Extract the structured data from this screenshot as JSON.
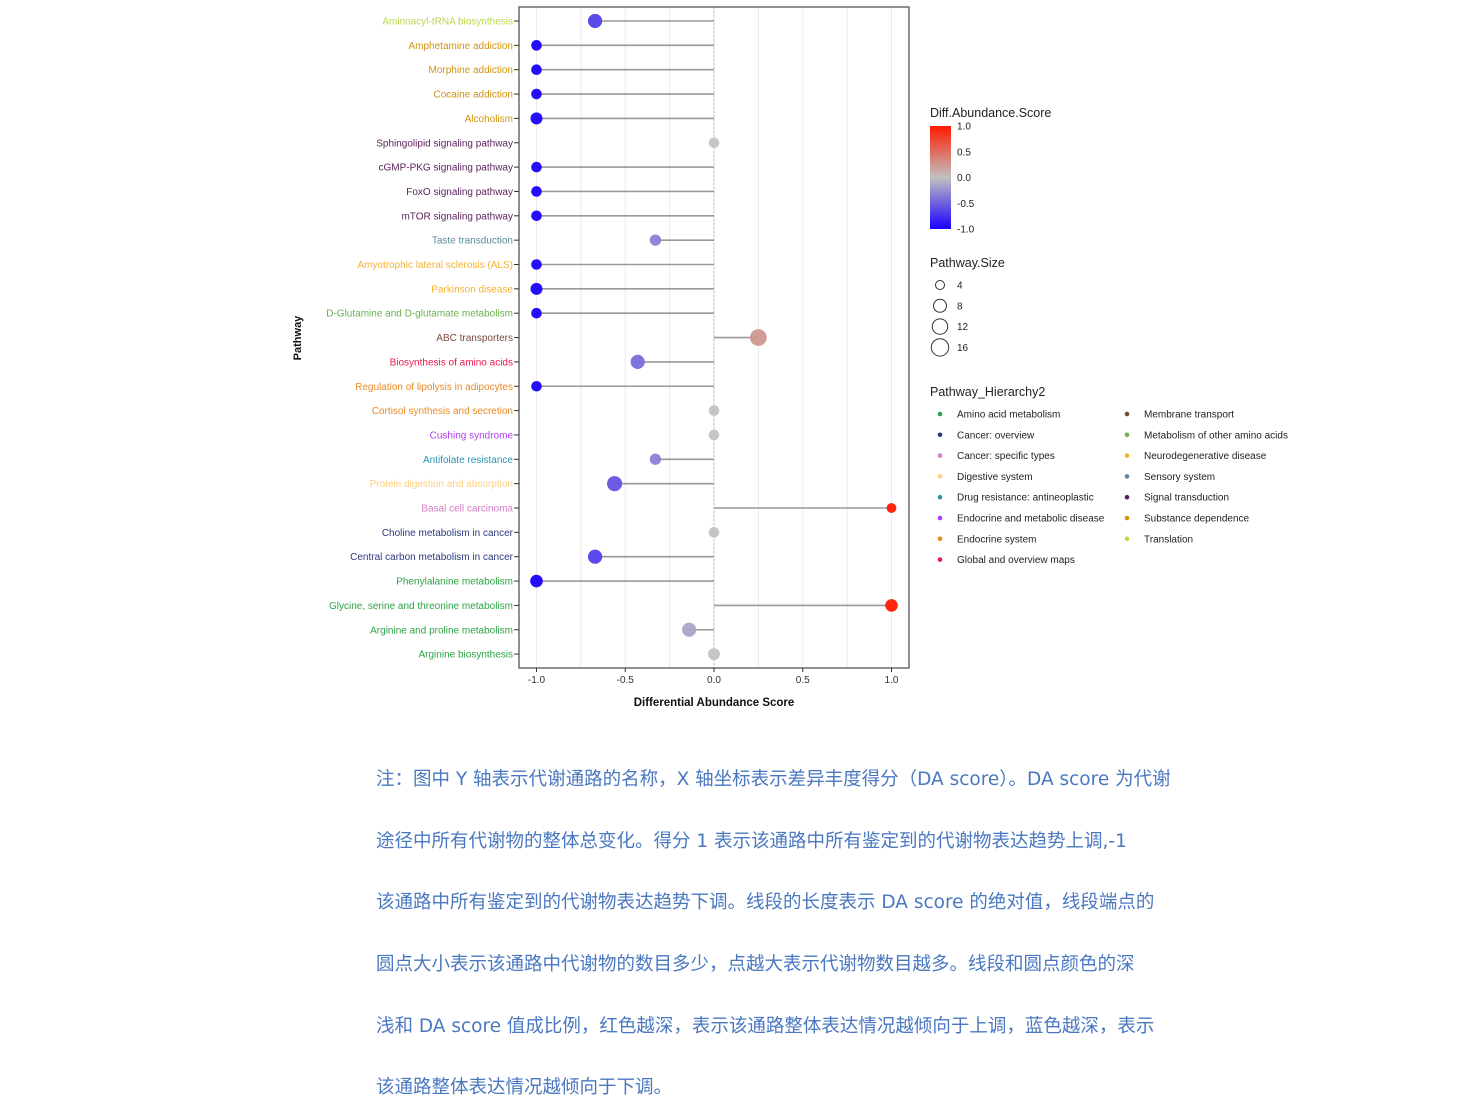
{
  "chart_data": {
    "type": "lollipop",
    "xlabel": "Differential Abundance Score",
    "ylabel": "Pathway",
    "xlim": [
      -1.1,
      1.1
    ],
    "xticks": [
      "-1.0",
      "-0.5",
      "0.0",
      "0.5",
      "1.0"
    ],
    "xtick_values": [
      -1,
      -0.5,
      0,
      0.5,
      1
    ],
    "grid": true,
    "rows": [
      {
        "name": "Aminoacyl-tRNA biosynthesis",
        "score": -0.67,
        "size": 10,
        "hierarchy": "Translation"
      },
      {
        "name": "Amphetamine addiction",
        "score": -1,
        "size": 4,
        "hierarchy": "Substance dependence"
      },
      {
        "name": "Morphine addiction",
        "score": -1,
        "size": 4,
        "hierarchy": "Substance dependence"
      },
      {
        "name": "Cocaine addiction",
        "score": -1,
        "size": 4,
        "hierarchy": "Substance dependence"
      },
      {
        "name": "Alcoholism",
        "score": -1,
        "size": 6,
        "hierarchy": "Substance dependence"
      },
      {
        "name": "Sphingolipid signaling pathway",
        "score": 0,
        "size": 4,
        "hierarchy": "Signal transduction"
      },
      {
        "name": "cGMP-PKG signaling pathway",
        "score": -1,
        "size": 4,
        "hierarchy": "Signal transduction"
      },
      {
        "name": "FoxO signaling pathway",
        "score": -1,
        "size": 4,
        "hierarchy": "Signal transduction"
      },
      {
        "name": "mTOR signaling pathway",
        "score": -1,
        "size": 4,
        "hierarchy": "Signal transduction"
      },
      {
        "name": "Taste transduction",
        "score": -0.33,
        "size": 5,
        "hierarchy": "Sensory system"
      },
      {
        "name": "Amyotrophic lateral sclerosis (ALS)",
        "score": -1,
        "size": 4,
        "hierarchy": "Neurodegenerative disease"
      },
      {
        "name": "Parkinson disease",
        "score": -1,
        "size": 6,
        "hierarchy": "Neurodegenerative disease"
      },
      {
        "name": "D-Glutamine and D-glutamate metabolism",
        "score": -1,
        "size": 4,
        "hierarchy": "Metabolism of other amino acids"
      },
      {
        "name": "ABC transporters",
        "score": 0.25,
        "size": 16,
        "hierarchy": "Membrane transport"
      },
      {
        "name": "Biosynthesis of amino acids",
        "score": -0.43,
        "size": 10,
        "hierarchy": "Global and overview maps"
      },
      {
        "name": "Regulation of lipolysis in adipocytes",
        "score": -1,
        "size": 4,
        "hierarchy": "Endocrine system"
      },
      {
        "name": "Cortisol synthesis and secretion",
        "score": 0,
        "size": 4,
        "hierarchy": "Endocrine system"
      },
      {
        "name": "Cushing syndrome",
        "score": 0,
        "size": 4,
        "hierarchy": "Endocrine and metabolic disease"
      },
      {
        "name": "Antifolate resistance",
        "score": -0.33,
        "size": 5,
        "hierarchy": "Drug resistance: antineoplastic"
      },
      {
        "name": "Protein digestion and absorption",
        "score": -0.56,
        "size": 12,
        "hierarchy": "Digestive system"
      },
      {
        "name": "Basal cell carcinoma",
        "score": 1,
        "size": 3,
        "hierarchy": "Cancer: specific types"
      },
      {
        "name": "Choline metabolism in cancer",
        "score": 0,
        "size": 4,
        "hierarchy": "Cancer: overview"
      },
      {
        "name": "Central carbon metabolism in cancer",
        "score": -0.67,
        "size": 10,
        "hierarchy": "Cancer: overview"
      },
      {
        "name": "Phenylalanine metabolism",
        "score": -1,
        "size": 7,
        "hierarchy": "Amino acid metabolism"
      },
      {
        "name": "Glycine, serine and threonine metabolism",
        "score": 1,
        "size": 7,
        "hierarchy": "Amino acid metabolism"
      },
      {
        "name": "Arginine and proline metabolism",
        "score": -0.14,
        "size": 10,
        "hierarchy": "Amino acid metabolism"
      },
      {
        "name": "Arginine biosynthesis",
        "score": 0,
        "size": 6,
        "hierarchy": "Amino acid metabolism"
      }
    ],
    "legend_color": {
      "title": "Diff.Abundance.Score",
      "labels": [
        "1.0",
        "0.5",
        "0.0",
        "-0.5",
        "-1.0"
      ],
      "low": "#1a00ff",
      "mid": "#c0c0c0",
      "high": "#ff1a00"
    },
    "legend_size": {
      "title": "Pathway.Size",
      "values": [
        4,
        8,
        12,
        16
      ],
      "labels": [
        "4",
        "8",
        "12",
        "16"
      ]
    },
    "legend_hierarchy": {
      "title": "Pathway_Hierarchy2",
      "items": [
        {
          "label": "Amino acid metabolism",
          "color": "#2ca444"
        },
        {
          "label": "Cancer: overview",
          "color": "#2b3a7e"
        },
        {
          "label": "Cancer: specific types",
          "color": "#d67fc6"
        },
        {
          "label": "Digestive system",
          "color": "#ffcf80"
        },
        {
          "label": "Drug resistance: antineoplastic",
          "color": "#2f93b3"
        },
        {
          "label": "Endocrine and metabolic disease",
          "color": "#b23cf2"
        },
        {
          "label": "Endocrine system",
          "color": "#e98b25"
        },
        {
          "label": "Global and overview maps",
          "color": "#e8194c"
        },
        {
          "label": "Membrane transport",
          "color": "#7b4a3c"
        },
        {
          "label": "Metabolism of other amino acids",
          "color": "#6cb04e"
        },
        {
          "label": "Neurodegenerative disease",
          "color": "#f6b131"
        },
        {
          "label": "Sensory system",
          "color": "#5b8b9b"
        },
        {
          "label": "Signal transduction",
          "color": "#5a1f5c"
        },
        {
          "label": "Substance dependence",
          "color": "#d4920d"
        },
        {
          "label": "Translation",
          "color": "#b9d84b"
        }
      ]
    }
  },
  "note": [
    "注：图中 Y 轴表示代谢通路的名称，X 轴坐标表示差异丰度得分（DA  score）。DA  score 为代谢",
    "途径中所有代谢物的整体总变化。得分  1  表示该通路中所有鉴定到的代谢物表达趋势上调,-1",
    "该通路中所有鉴定到的代谢物表达趋势下调。线段的长度表示 DA score 的绝对值，线段端点的",
    "圆点大小表示该通路中代谢物的数目多少，点越大表示代谢物数目越多。线段和圆点颜色的深",
    "浅和 DA score 值成比例，红色越深，表示该通路整体表达情况越倾向于上调，蓝色越深，表示",
    "该通路整体表达情况越倾向于下调。"
  ]
}
